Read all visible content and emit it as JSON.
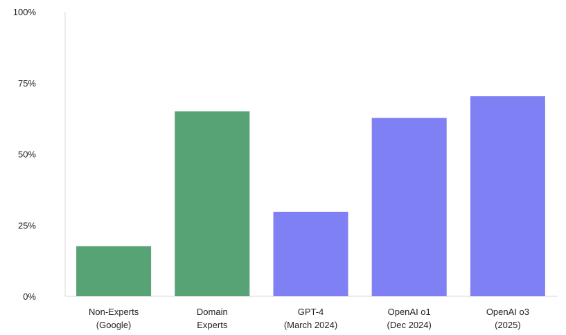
{
  "chart_data": {
    "type": "bar",
    "title": "",
    "xlabel": "",
    "ylabel": "",
    "ylim": [
      0,
      100
    ],
    "grid": false,
    "legend": "none",
    "y_ticks": [
      {
        "value": 0,
        "label": "0%"
      },
      {
        "value": 25,
        "label": "25%"
      },
      {
        "value": 50,
        "label": "50%"
      },
      {
        "value": 75,
        "label": "75%"
      },
      {
        "value": 100,
        "label": "100%"
      }
    ],
    "categories": [
      [
        "Non-Experts",
        "(Google)"
      ],
      [
        "Domain",
        "Experts"
      ],
      [
        "GPT-4",
        "(March 2024)"
      ],
      [
        "OpenAI o1",
        "(Dec 2024)"
      ],
      [
        "OpenAI o3",
        "(2025)"
      ]
    ],
    "values": [
      17.6,
      65,
      29.7,
      62.7,
      70.3
    ],
    "bar_colors": [
      "#57a375",
      "#57a375",
      "#8080f5",
      "#8080f5",
      "#8080f5"
    ],
    "axis_color": "#d9d9d9",
    "text_color": "#222222"
  }
}
